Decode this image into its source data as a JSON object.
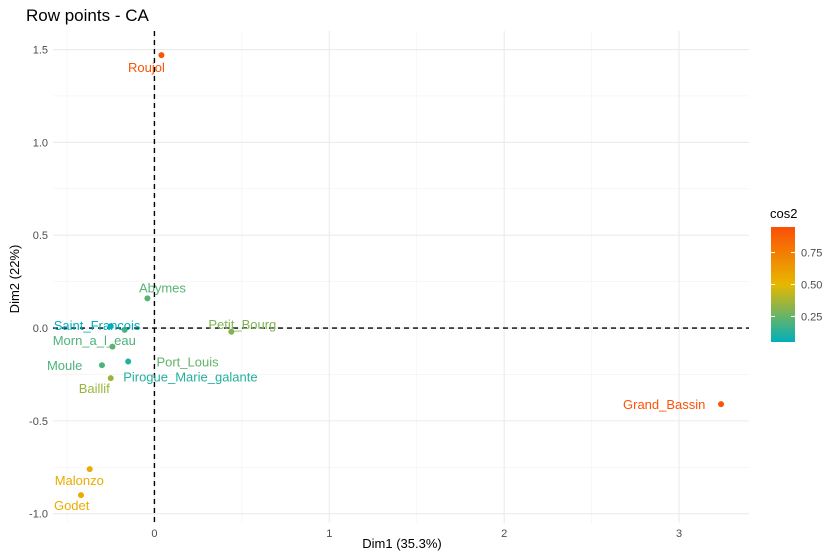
{
  "chart_data": {
    "type": "scatter",
    "title": "Row points - CA",
    "xlabel": "Dim1 (35.3%)",
    "ylabel": "Dim2 (22%)",
    "xlim": [
      -0.58,
      3.4
    ],
    "ylim": [
      -1.05,
      1.6
    ],
    "x_ticks": [
      0,
      1,
      2,
      3
    ],
    "y_ticks": [
      -1.0,
      -0.5,
      0.0,
      0.5,
      1.0,
      1.5
    ],
    "x_tick_labels": [
      "0",
      "1",
      "2",
      "3"
    ],
    "y_tick_labels": [
      "-1.0",
      "-0.5",
      "0.0",
      "0.5",
      "1.0",
      "1.5"
    ],
    "grid": true,
    "reference_lines": {
      "x": 0,
      "y": 0,
      "style": "dashed"
    },
    "points": [
      {
        "name": "Roujol",
        "x": 0.04,
        "y": 1.47,
        "cos2": 0.93
      },
      {
        "name": "Abymes",
        "x": -0.04,
        "y": 0.16,
        "cos2": 0.22
      },
      {
        "name": "Saint_Francois",
        "x": -0.25,
        "y": 0.01,
        "cos2": 0.05
      },
      {
        "name": "Petit_Bourg",
        "x": 0.44,
        "y": -0.02,
        "cos2": 0.3
      },
      {
        "name": "Morn_a_l_eau",
        "x": -0.17,
        "y": -0.01,
        "cos2": 0.2
      },
      {
        "name": "Port_Louis",
        "x": -0.24,
        "y": -0.1,
        "cos2": 0.24
      },
      {
        "name": "Moule",
        "x": -0.3,
        "y": -0.2,
        "cos2": 0.2
      },
      {
        "name": "Pirogue_Marie_galante",
        "x": -0.15,
        "y": -0.18,
        "cos2": 0.12
      },
      {
        "name": "Baillif",
        "x": -0.25,
        "y": -0.27,
        "cos2": 0.35
      },
      {
        "name": "Grand_Bassin",
        "x": 3.24,
        "y": -0.41,
        "cos2": 0.93
      },
      {
        "name": "Malonzo",
        "x": -0.37,
        "y": -0.76,
        "cos2": 0.55
      },
      {
        "name": "Godet",
        "x": -0.42,
        "y": -0.9,
        "cos2": 0.55
      }
    ],
    "legend": {
      "title": "cos2",
      "placement": "right",
      "range": [
        0.05,
        0.95
      ],
      "ticks": [
        0.25,
        0.5,
        0.75
      ],
      "tick_labels": [
        "0.25",
        "0.50",
        "0.75"
      ],
      "gradient": [
        "#00AFBB",
        "#E7B800",
        "#FC4E07"
      ]
    }
  }
}
